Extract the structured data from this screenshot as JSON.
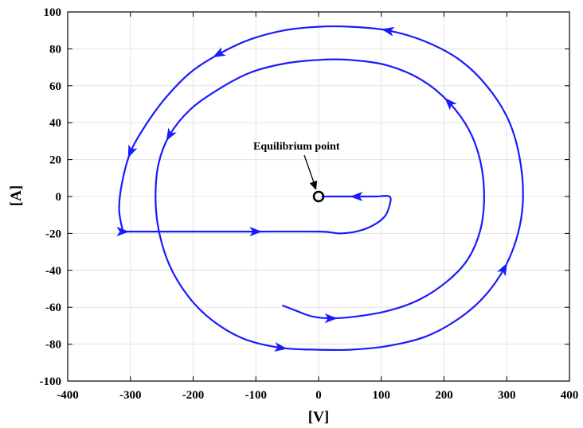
{
  "chart_data": {
    "type": "line",
    "title": "",
    "xlabel": "[V]",
    "ylabel": "[A]",
    "xlim": [
      -400,
      400
    ],
    "ylim": [
      -100,
      100
    ],
    "xticks": [
      -400,
      -300,
      -200,
      -100,
      0,
      100,
      200,
      300,
      400
    ],
    "yticks": [
      -100,
      -80,
      -60,
      -40,
      -20,
      0,
      20,
      40,
      60,
      80,
      100
    ],
    "grid": true,
    "legend": "none",
    "series": [
      {
        "color": "#1a1aff",
        "x": [
          -58,
          -35,
          -10,
          20,
          60,
          110,
          160,
          205,
          238,
          258,
          264,
          258,
          240,
          208,
          165,
          110,
          50,
          0,
          -55,
          -110,
          -160,
          -205,
          -238,
          -255,
          -260,
          -255,
          -238,
          -208,
          -170,
          -120,
          -60,
          0,
          50,
          110,
          170,
          220,
          262,
          296,
          318,
          326,
          320,
          302,
          268,
          225,
          170,
          110,
          50,
          0,
          -55,
          -110,
          -160,
          -205,
          -245,
          -275,
          -300,
          -313,
          -318,
          -312,
          -312,
          -270,
          -200,
          -100,
          0,
          20,
          35,
          60,
          85,
          105,
          113,
          113,
          90,
          60,
          30,
          5
        ],
        "y": [
          -59,
          -62,
          -65,
          -66,
          -65,
          -62,
          -56,
          -46,
          -34,
          -18,
          0,
          19,
          36,
          51,
          63,
          71,
          74,
          74,
          72,
          67,
          58,
          47,
          33,
          18,
          0,
          -18,
          -37,
          -54,
          -67,
          -77,
          -82,
          -83,
          -83,
          -81,
          -76,
          -67,
          -55,
          -39,
          -20,
          0,
          22,
          42,
          60,
          74,
          84,
          90,
          92,
          92,
          90,
          85,
          77,
          67,
          53,
          39,
          24,
          8,
          -7,
          -19,
          -19,
          -19,
          -19,
          -19,
          -19,
          -19.5,
          -20,
          -19,
          -16,
          -11,
          -5,
          0,
          0,
          0,
          0,
          0
        ],
        "arrows_at": [
          3,
          13,
          22,
          30,
          37,
          45,
          50,
          54,
          58,
          61,
          71
        ]
      }
    ],
    "annotations": [
      {
        "text": "Equilibrium point",
        "x": 0,
        "y": 0,
        "marker": "circle"
      }
    ]
  }
}
